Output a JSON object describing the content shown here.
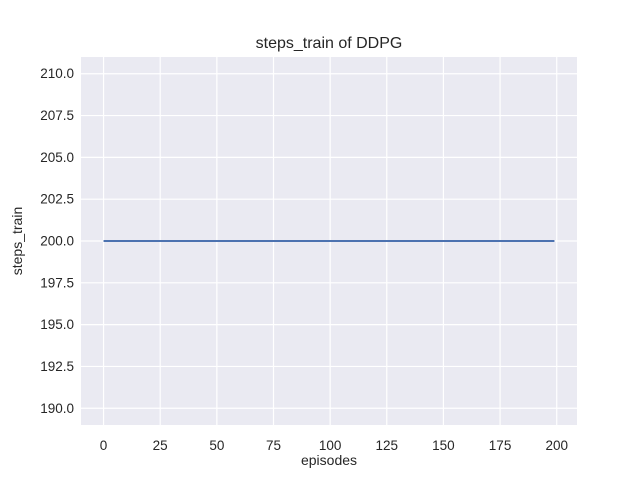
{
  "figure": {
    "title": "steps_train of DDPG",
    "xlabel": "episodes",
    "ylabel": "steps_train"
  },
  "colors": {
    "line": "#4c72b0",
    "plot_background": "#eaeaf2",
    "grid": "#ffffff",
    "text": "#262626",
    "figure_background": "#ffffff"
  },
  "chart_data": {
    "type": "line",
    "title": "steps_train of DDPG",
    "xlabel": "episodes",
    "ylabel": "steps_train",
    "xlim": [
      -9.95,
      208.95
    ],
    "ylim": [
      189.0,
      211.0
    ],
    "x_ticks": [
      0,
      25,
      50,
      75,
      100,
      125,
      150,
      175,
      200
    ],
    "x_tick_labels": [
      "0",
      "25",
      "50",
      "75",
      "100",
      "125",
      "150",
      "175",
      "200"
    ],
    "y_ticks": [
      190.0,
      192.5,
      195.0,
      197.5,
      200.0,
      202.5,
      205.0,
      207.5,
      210.0
    ],
    "y_tick_labels": [
      "190.0",
      "192.5",
      "195.0",
      "197.5",
      "200.0",
      "202.5",
      "205.0",
      "207.5",
      "210.0"
    ],
    "grid": true,
    "legend": false,
    "series": [
      {
        "name": "steps_train of DDPG",
        "color": "#4c72b0",
        "x": [
          0,
          199
        ],
        "y": [
          200.0,
          200.0
        ],
        "note": "constant value 200 for every episode 0-199"
      }
    ]
  }
}
